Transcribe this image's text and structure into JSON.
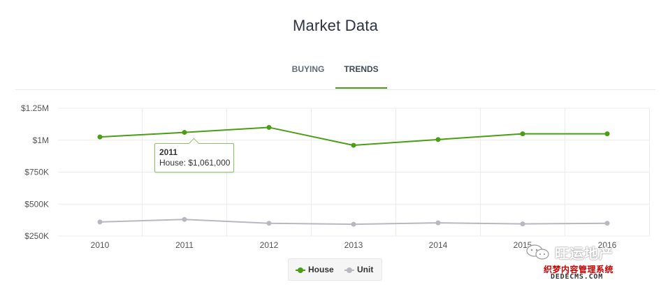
{
  "page": {
    "title": "Market Data"
  },
  "tabs": [
    {
      "label": "BUYING",
      "active": false
    },
    {
      "label": "TRENDS",
      "active": true
    }
  ],
  "tooltip": {
    "year": "2011",
    "text": "House: $1,061,000"
  },
  "legend": [
    {
      "label": "House",
      "color": "#4a9e14"
    },
    {
      "label": "Unit",
      "color": "#b8b8c0"
    }
  ],
  "watermark": {
    "brand": "旺运地产",
    "sub": "织梦内容管理系统",
    "url": "DEDECMS.COM"
  },
  "chart_data": {
    "type": "line",
    "x": [
      "2010",
      "2011",
      "2012",
      "2013",
      "2014",
      "2015",
      "2016"
    ],
    "yticks": [
      "$250K",
      "$500K",
      "$750K",
      "$1M",
      "$1.25M"
    ],
    "ytick_values": [
      250000,
      500000,
      750000,
      1000000,
      1250000
    ],
    "ylim": [
      250000,
      1250000
    ],
    "grid": true,
    "legend_position": "bottom-center",
    "series": [
      {
        "name": "House",
        "color": "#4a9e14",
        "values": [
          1025000,
          1061000,
          1100000,
          960000,
          1005000,
          1050000,
          1050000
        ]
      },
      {
        "name": "Unit",
        "color": "#b8b8c0",
        "values": [
          360000,
          380000,
          350000,
          342000,
          353000,
          345000,
          350000
        ]
      }
    ]
  }
}
